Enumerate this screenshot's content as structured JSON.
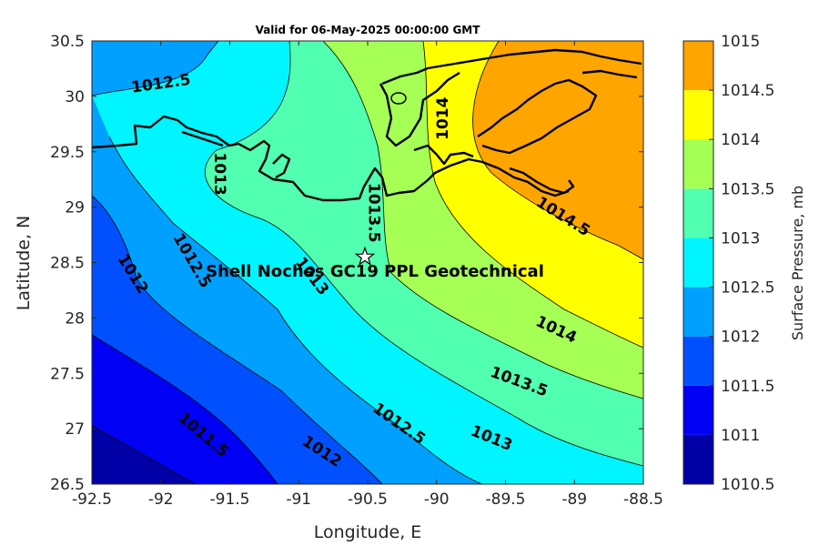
{
  "chart_data": {
    "type": "filled-contour-map",
    "title": "Valid for 06-May-2025 00:00:00 GMT",
    "xlabel": "Longitude, E",
    "ylabel": "Latitude, N",
    "xlim": [
      -92.5,
      -88.5
    ],
    "ylim": [
      26.5,
      30.5
    ],
    "x_ticks": [
      "-92.5",
      "-92",
      "-91.5",
      "-91",
      "-90.5",
      "-90",
      "-89.5",
      "-89",
      "-88.5"
    ],
    "y_ticks": [
      "30.5",
      "30",
      "29.5",
      "29",
      "28.5",
      "28",
      "27.5",
      "27",
      "26.5"
    ],
    "colorbar": {
      "label": "Surface Pressure, mb",
      "levels": [
        1010.5,
        1011,
        1011.5,
        1012,
        1012.5,
        1013,
        1013.5,
        1014,
        1014.5,
        1015
      ],
      "tick_labels": [
        "1010.5",
        "1011",
        "1011.5",
        "1012",
        "1012.5",
        "1013",
        "1013.5",
        "1014",
        "1014.5",
        "1015"
      ],
      "colors": [
        "#0000a6",
        "#0000f5",
        "#0050ff",
        "#00a0ff",
        "#00f5ff",
        "#50ffb0",
        "#a6ff55",
        "#ffff00",
        "#ffa500",
        "#ff5000"
      ]
    },
    "contour_labels": [
      {
        "text": "1012.5",
        "lon": -92.0,
        "lat": 30.12,
        "angle": -8
      },
      {
        "text": "1013",
        "lon": -91.57,
        "lat": 29.3,
        "angle": 90
      },
      {
        "text": "1014",
        "lon": -89.96,
        "lat": 29.8,
        "angle": -90
      },
      {
        "text": "1013.5",
        "lon": -90.45,
        "lat": 28.95,
        "angle": 90
      },
      {
        "text": "1014.5",
        "lon": -89.08,
        "lat": 28.92,
        "angle": 32
      },
      {
        "text": "1012",
        "lon": -92.2,
        "lat": 28.4,
        "angle": 58
      },
      {
        "text": "1012.5",
        "lon": -91.77,
        "lat": 28.52,
        "angle": 60
      },
      {
        "text": "1013",
        "lon": -90.9,
        "lat": 28.38,
        "angle": 52
      },
      {
        "text": "1014",
        "lon": -89.13,
        "lat": 27.9,
        "angle": 25
      },
      {
        "text": "1013.5",
        "lon": -89.4,
        "lat": 27.43,
        "angle": 20
      },
      {
        "text": "1011.5",
        "lon": -91.69,
        "lat": 26.95,
        "angle": 40
      },
      {
        "text": "1012.5",
        "lon": -90.27,
        "lat": 27.05,
        "angle": 35
      },
      {
        "text": "1012",
        "lon": -90.83,
        "lat": 26.8,
        "angle": 33
      },
      {
        "text": "1013",
        "lon": -89.6,
        "lat": 26.92,
        "angle": 22
      }
    ],
    "site": {
      "name": "Shell Noches  GC19 PPL  Geotechnical",
      "lon": -90.52,
      "lat": 28.55,
      "marker": "star"
    },
    "grid": false,
    "legend": "colorbar-right"
  }
}
